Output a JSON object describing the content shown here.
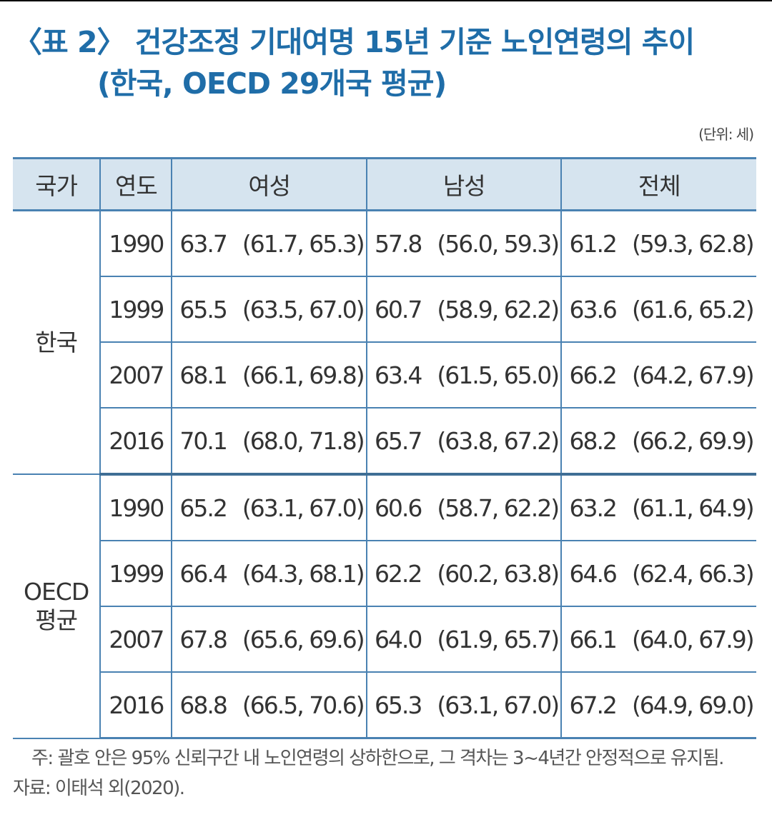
{
  "title": {
    "line1": "〈표 2〉 건강조정 기대여명 15년 기준 노인연령의 추이",
    "line2": "(한국, OECD 29개국 평균)"
  },
  "unit": "(단위: 세)",
  "headers": {
    "country": "국가",
    "year": "연도",
    "female": "여성",
    "male": "남성",
    "total": "전체"
  },
  "groups": [
    {
      "country_line1": "한국",
      "country_line2": "",
      "rows": [
        {
          "year": "1990",
          "female": "63.7",
          "female_ci": "(61.7, 65.3)",
          "male": "57.8",
          "male_ci": "(56.0, 59.3)",
          "total": "61.2",
          "total_ci": "(59.3, 62.8)"
        },
        {
          "year": "1999",
          "female": "65.5",
          "female_ci": "(63.5, 67.0)",
          "male": "60.7",
          "male_ci": "(58.9, 62.2)",
          "total": "63.6",
          "total_ci": "(61.6, 65.2)"
        },
        {
          "year": "2007",
          "female": "68.1",
          "female_ci": "(66.1, 69.8)",
          "male": "63.4",
          "male_ci": "(61.5, 65.0)",
          "total": "66.2",
          "total_ci": "(64.2, 67.9)"
        },
        {
          "year": "2016",
          "female": "70.1",
          "female_ci": "(68.0, 71.8)",
          "male": "65.7",
          "male_ci": "(63.8, 67.2)",
          "total": "68.2",
          "total_ci": "(66.2, 69.9)"
        }
      ]
    },
    {
      "country_line1": "OECD",
      "country_line2": "평균",
      "rows": [
        {
          "year": "1990",
          "female": "65.2",
          "female_ci": "(63.1, 67.0)",
          "male": "60.6",
          "male_ci": "(58.7, 62.2)",
          "total": "63.2",
          "total_ci": "(61.1, 64.9)"
        },
        {
          "year": "1999",
          "female": "66.4",
          "female_ci": "(64.3, 68.1)",
          "male": "62.2",
          "male_ci": "(60.2, 63.8)",
          "total": "64.6",
          "total_ci": "(62.4, 66.3)"
        },
        {
          "year": "2007",
          "female": "67.8",
          "female_ci": "(65.6, 69.6)",
          "male": "64.0",
          "male_ci": "(61.9, 65.7)",
          "total": "66.1",
          "total_ci": "(64.0, 67.9)"
        },
        {
          "year": "2016",
          "female": "68.8",
          "female_ci": "(66.5, 70.6)",
          "male": "65.3",
          "male_ci": "(63.1, 67.0)",
          "total": "67.2",
          "total_ci": "(64.9, 69.0)"
        }
      ]
    }
  ],
  "note": "주: 괄호 안은 95% 신뢰구간 내 노인연령의 상하한으로, 그 격차는 3~4년간 안정적으로 유지됨.",
  "source": "자료: 이태석 외(2020).",
  "colors": {
    "title": "#1f6da8",
    "header_bg": "#d6e4ef",
    "border": "#4a82b2"
  }
}
